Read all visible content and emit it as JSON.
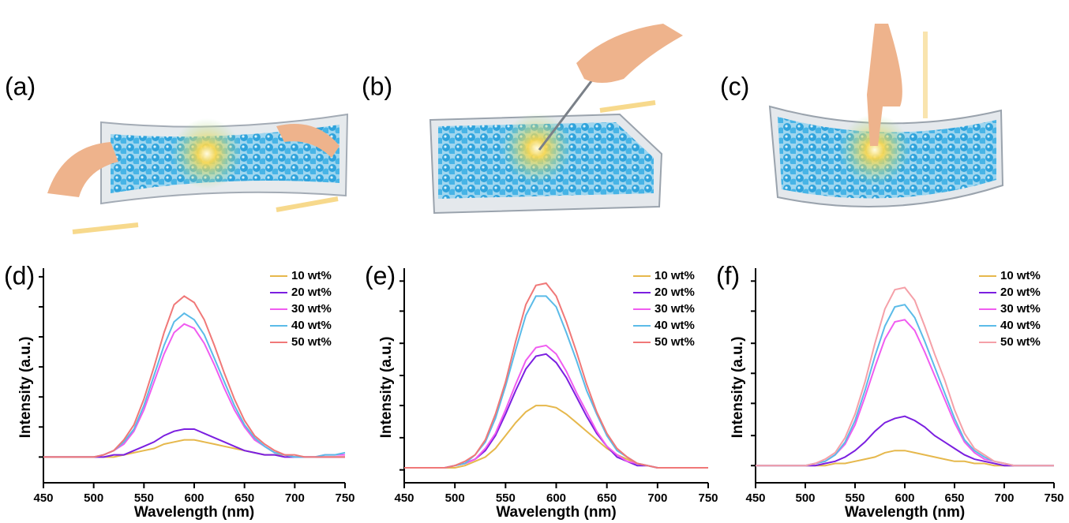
{
  "illustrations": [
    {
      "label": "(a)"
    },
    {
      "label": "(b)"
    },
    {
      "label": "(c)"
    }
  ],
  "chart_data": [
    {
      "type": "line",
      "panel_label": "(d)",
      "x_label": "Wavelength (nm)",
      "y_label": "Intensity (a.u.)",
      "legend": "upper right",
      "x": [
        450,
        460,
        470,
        480,
        490,
        500,
        510,
        520,
        530,
        540,
        550,
        560,
        570,
        580,
        590,
        600,
        610,
        620,
        630,
        640,
        650,
        660,
        670,
        680,
        690,
        700,
        710,
        720,
        730,
        740,
        750
      ],
      "xlim": [
        450,
        750
      ],
      "xticks": [
        450,
        500,
        550,
        600,
        650,
        700,
        750
      ],
      "ylim": [
        0,
        100
      ],
      "yticks": [
        12,
        26,
        40,
        54,
        68,
        82,
        96
      ],
      "series": [
        {
          "name": "10 wt%",
          "color": "#e6b84c",
          "values": [
            12,
            12,
            12,
            12,
            12,
            12,
            12,
            12,
            13,
            14,
            15,
            16,
            18,
            19,
            20,
            20,
            19,
            18,
            17,
            16,
            15,
            14,
            13,
            13,
            13,
            12,
            12,
            12,
            12,
            12,
            12
          ]
        },
        {
          "name": "20 wt%",
          "color": "#7b1fe0",
          "values": [
            12,
            12,
            12,
            12,
            12,
            12,
            12,
            13,
            13,
            15,
            17,
            19,
            22,
            24,
            25,
            25,
            23,
            21,
            19,
            17,
            15,
            14,
            13,
            13,
            12,
            12,
            12,
            12,
            12,
            12,
            12
          ]
        },
        {
          "name": "30 wt%",
          "color": "#f05cf0",
          "values": [
            12,
            12,
            12,
            12,
            12,
            12,
            13,
            15,
            18,
            24,
            34,
            47,
            60,
            70,
            74,
            72,
            65,
            55,
            44,
            34,
            26,
            20,
            17,
            14,
            13,
            12,
            12,
            12,
            13,
            13,
            13
          ]
        },
        {
          "name": "40 wt%",
          "color": "#5bbbe8",
          "values": [
            12,
            12,
            12,
            12,
            12,
            12,
            13,
            15,
            19,
            25,
            36,
            50,
            64,
            75,
            79,
            76,
            69,
            58,
            47,
            36,
            27,
            21,
            17,
            14,
            13,
            12,
            12,
            12,
            13,
            13,
            14
          ]
        },
        {
          "name": "50 wt%",
          "color": "#f07878",
          "values": [
            12,
            12,
            12,
            12,
            12,
            12,
            13,
            15,
            20,
            27,
            39,
            54,
            70,
            83,
            87,
            84,
            76,
            64,
            51,
            39,
            29,
            22,
            18,
            15,
            13,
            13,
            12,
            12,
            12,
            12,
            12
          ]
        }
      ]
    },
    {
      "type": "line",
      "panel_label": "(e)",
      "x_label": "Wavelength (nm)",
      "y_label": "Intensity (a.u.)",
      "legend": "upper right",
      "x": [
        450,
        460,
        470,
        480,
        490,
        500,
        510,
        520,
        530,
        540,
        550,
        560,
        570,
        580,
        590,
        600,
        610,
        620,
        630,
        640,
        650,
        660,
        670,
        680,
        690,
        700,
        710,
        720,
        730,
        740,
        750
      ],
      "xlim": [
        450,
        750
      ],
      "xticks": [
        450,
        500,
        550,
        600,
        650,
        700,
        750
      ],
      "ylim": [
        0,
        100
      ],
      "yticks": [
        6,
        21,
        36,
        50,
        65,
        80,
        94
      ],
      "series": [
        {
          "name": "10 wt%",
          "color": "#e6b84c",
          "values": [
            7,
            7,
            7,
            7,
            7,
            7,
            8,
            10,
            12,
            16,
            22,
            28,
            33,
            36,
            36,
            35,
            32,
            28,
            24,
            20,
            16,
            13,
            11,
            9,
            8,
            7,
            7,
            7,
            7,
            7,
            7
          ]
        },
        {
          "name": "20 wt%",
          "color": "#7b1fe0",
          "values": [
            7,
            7,
            7,
            7,
            7,
            8,
            9,
            11,
            15,
            22,
            32,
            43,
            53,
            59,
            60,
            56,
            49,
            40,
            31,
            23,
            17,
            12,
            10,
            8,
            8,
            7,
            7,
            7,
            7,
            7,
            7
          ]
        },
        {
          "name": "30 wt%",
          "color": "#f05cf0",
          "values": [
            7,
            7,
            7,
            7,
            7,
            8,
            9,
            11,
            16,
            23,
            34,
            46,
            57,
            63,
            64,
            60,
            52,
            42,
            33,
            24,
            17,
            13,
            10,
            9,
            8,
            7,
            7,
            7,
            7,
            7,
            7
          ]
        },
        {
          "name": "40 wt%",
          "color": "#5bbbe8",
          "values": [
            7,
            7,
            7,
            7,
            7,
            8,
            9,
            13,
            19,
            30,
            45,
            62,
            78,
            87,
            87,
            82,
            70,
            57,
            43,
            32,
            22,
            15,
            12,
            9,
            8,
            7,
            7,
            7,
            7,
            7,
            7
          ]
        },
        {
          "name": "50 wt%",
          "color": "#f07878",
          "values": [
            7,
            7,
            7,
            7,
            7,
            8,
            10,
            13,
            20,
            32,
            47,
            66,
            83,
            92,
            93,
            87,
            75,
            61,
            46,
            33,
            23,
            16,
            12,
            9,
            8,
            7,
            7,
            7,
            7,
            7,
            7
          ]
        }
      ]
    },
    {
      "type": "line",
      "panel_label": "(f)",
      "x_label": "Wavelength (nm)",
      "y_label": "Intensity (a.u.)",
      "legend": "upper right",
      "x": [
        450,
        460,
        470,
        480,
        490,
        500,
        510,
        520,
        530,
        540,
        550,
        560,
        570,
        580,
        590,
        600,
        610,
        620,
        630,
        640,
        650,
        660,
        670,
        680,
        690,
        700,
        710,
        720,
        730,
        740,
        750
      ],
      "xlim": [
        450,
        750
      ],
      "xticks": [
        450,
        500,
        550,
        600,
        650,
        700,
        750
      ],
      "ylim": [
        0,
        100
      ],
      "yticks": [
        8,
        22,
        37,
        51,
        65,
        80,
        94
      ],
      "series": [
        {
          "name": "10 wt%",
          "color": "#e6b84c",
          "values": [
            8,
            8,
            8,
            8,
            8,
            8,
            8,
            8,
            9,
            9,
            10,
            11,
            12,
            14,
            15,
            15,
            14,
            13,
            12,
            11,
            10,
            10,
            9,
            9,
            8,
            8,
            8,
            8,
            8,
            8,
            8
          ]
        },
        {
          "name": "20 wt%",
          "color": "#7b1fe0",
          "values": [
            8,
            8,
            8,
            8,
            8,
            8,
            8,
            9,
            10,
            12,
            15,
            19,
            24,
            28,
            30,
            31,
            29,
            26,
            22,
            19,
            16,
            13,
            11,
            10,
            9,
            8,
            8,
            8,
            8,
            8,
            8
          ]
        },
        {
          "name": "30 wt%",
          "color": "#f05cf0",
          "values": [
            8,
            8,
            8,
            8,
            8,
            8,
            9,
            10,
            13,
            18,
            27,
            40,
            54,
            67,
            75,
            76,
            71,
            61,
            50,
            39,
            28,
            19,
            14,
            11,
            10,
            9,
            8,
            8,
            8,
            8,
            8
          ]
        },
        {
          "name": "40 wt%",
          "color": "#5bbbe8",
          "values": [
            8,
            8,
            8,
            8,
            8,
            8,
            9,
            10,
            13,
            19,
            29,
            43,
            59,
            73,
            82,
            83,
            77,
            66,
            54,
            42,
            30,
            20,
            15,
            12,
            10,
            9,
            8,
            8,
            8,
            8,
            8
          ]
        },
        {
          "name": "50 wt%",
          "color": "#f5a0a8",
          "values": [
            8,
            8,
            8,
            8,
            8,
            8,
            9,
            11,
            14,
            21,
            32,
            47,
            65,
            81,
            90,
            91,
            85,
            73,
            60,
            48,
            34,
            23,
            16,
            13,
            10,
            9,
            8,
            8,
            8,
            8,
            8
          ]
        }
      ]
    }
  ]
}
